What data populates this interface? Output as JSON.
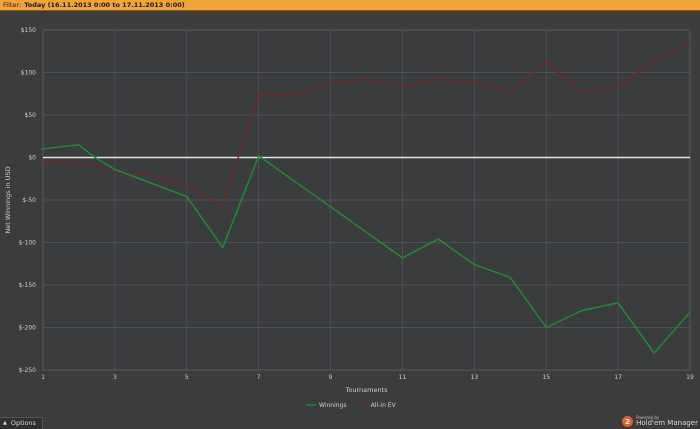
{
  "filter": {
    "label": "Filter:",
    "value": "Today (16.11.2013 0:00 to 17.11.2013 0:00)"
  },
  "options_label": "Options",
  "brand": {
    "powered": "Powered by",
    "name": "Hold'em Manager"
  },
  "colors": {
    "background": "#3b3c3e",
    "grid": "#56585b",
    "zero_line": "#e6e6e6",
    "winnings": "#1f8a34",
    "allin_ev": "#6b2b2e",
    "filter_bar": "#f2a33a"
  },
  "chart_data": {
    "type": "line",
    "xlabel": "Tournaments",
    "ylabel": "Net Winnings in USD",
    "xlim": [
      1,
      19
    ],
    "ylim": [
      -250,
      150
    ],
    "x_ticks": [
      1,
      3,
      5,
      7,
      9,
      11,
      13,
      15,
      17,
      19
    ],
    "y_ticks": [
      150,
      100,
      50,
      0,
      -50,
      -100,
      -150,
      -200,
      -250
    ],
    "y_tick_labels": [
      "$150",
      "$100",
      "$50",
      "$0",
      "$-50",
      "$-100",
      "$-150",
      "$-200",
      "$-250"
    ],
    "x": [
      0.95,
      2,
      2.45,
      3,
      4,
      5,
      6,
      7,
      8,
      9,
      10,
      11,
      12,
      13,
      14,
      15,
      16,
      17,
      18,
      19
    ],
    "grid": true,
    "legend_position": "bottom-center",
    "series": [
      {
        "name": "Winnings",
        "color": "#1f8a34",
        "values": [
          10,
          15,
          0,
          -14,
          -30,
          -46,
          -106,
          2,
          -28,
          -58,
          -88,
          -118,
          -96,
          -126,
          -141,
          -200,
          -180,
          -171,
          -230,
          -182
        ]
      },
      {
        "name": "All-in EV",
        "color": "#6b2b2e",
        "values": [
          -6,
          -7,
          -10,
          -17,
          -21,
          -32,
          -57,
          75,
          73,
          87,
          92,
          84,
          92,
          89,
          76,
          113,
          77,
          83,
          113,
          136
        ]
      }
    ]
  }
}
